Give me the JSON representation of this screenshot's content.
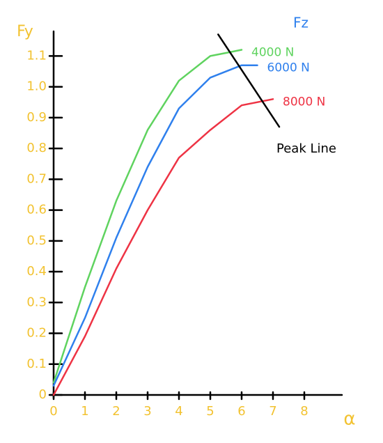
{
  "chart_data": {
    "type": "line",
    "y_label": "Fy",
    "x_label": "α",
    "legend_title": "Fz",
    "axis_color": "#f2c230",
    "xlim": [
      0,
      9.2
    ],
    "ylim": [
      0,
      1.18
    ],
    "xticks": [
      0,
      1,
      2,
      3,
      4,
      5,
      6,
      7,
      8
    ],
    "yticks": [
      0,
      0.1,
      0.2,
      0.3,
      0.4,
      0.5,
      0.6,
      0.7,
      0.8,
      0.9,
      {
        "value": 1,
        "label": "1.0"
      },
      1.1
    ],
    "series": [
      {
        "name": "4000 N",
        "color": "#5fd35f",
        "x": [
          0,
          1,
          2,
          3,
          4,
          5,
          5.5,
          6
        ],
        "values": [
          0.04,
          0.35,
          0.63,
          0.86,
          1.02,
          1.1,
          1.11,
          1.12
        ]
      },
      {
        "name": "6000 N",
        "color": "#2f80ed",
        "x": [
          0,
          1,
          2,
          3,
          4,
          5,
          6,
          6.5
        ],
        "values": [
          0.03,
          0.25,
          0.51,
          0.74,
          0.93,
          1.03,
          1.07,
          1.07
        ]
      },
      {
        "name": "8000 N",
        "color": "#ee3344",
        "x": [
          0,
          1,
          2,
          3,
          4,
          5,
          6,
          7
        ],
        "values": [
          0,
          0.19,
          0.41,
          0.6,
          0.77,
          0.86,
          0.94,
          0.96
        ]
      }
    ],
    "annotations": [
      {
        "text": "Peak Line",
        "color": "#000000",
        "x": [
          5.25,
          7.2
        ],
        "y": [
          1.17,
          0.87
        ]
      }
    ]
  }
}
